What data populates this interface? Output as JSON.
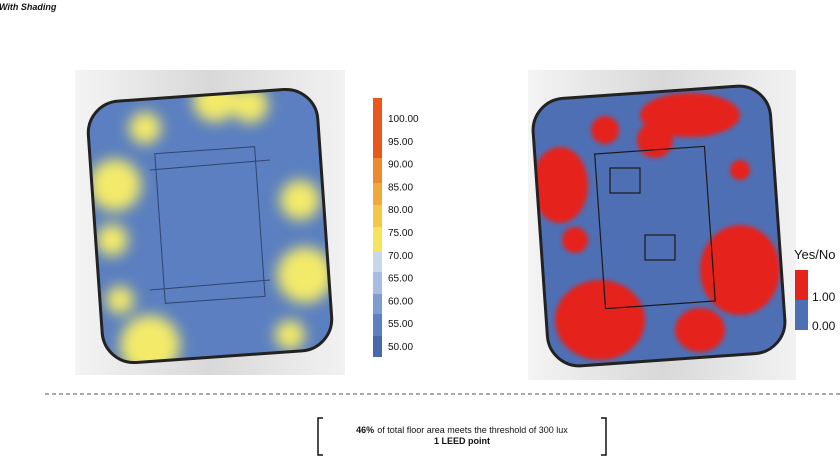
{
  "title": "With Shading",
  "scale": {
    "labels": [
      "100.00",
      "95.00",
      "90.00",
      "85.00",
      "80.00",
      "75.00",
      "70.00",
      "65.00",
      "60.00",
      "55.00",
      "50.00"
    ]
  },
  "binary_legend": {
    "title": "Yes/No",
    "labels": [
      "1.00",
      "0.00"
    ]
  },
  "summary": {
    "percent": "46%",
    "text": "of total floor area meets the threshold of 300 lux",
    "points": "1 LEED point"
  }
}
